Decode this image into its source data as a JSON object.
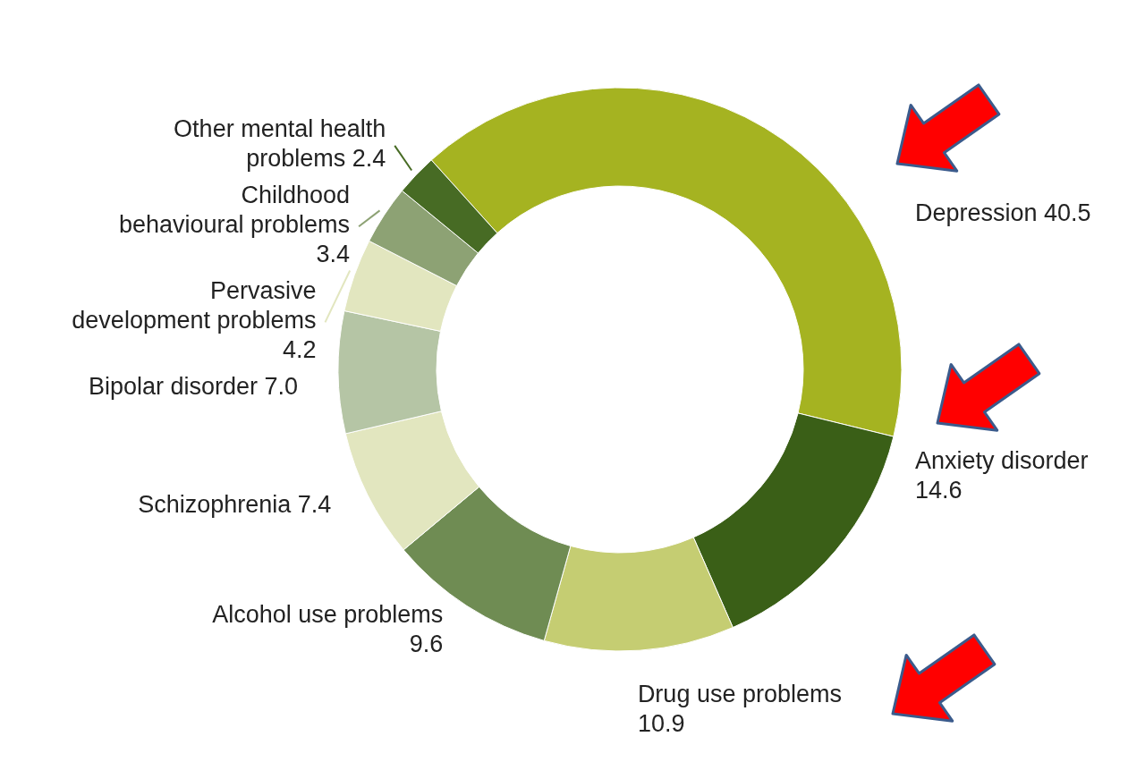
{
  "chart_data": {
    "type": "donut",
    "categories": [
      "Depression",
      "Anxiety disorder",
      "Drug use problems",
      "Alcohol use problems",
      "Schizophrenia",
      "Bipolar disorder",
      "Pervasive development problems",
      "Childhood behavioural problems",
      "Other mental health problems"
    ],
    "values": [
      40.5,
      14.6,
      10.9,
      9.6,
      7.4,
      7.0,
      4.2,
      3.4,
      2.4
    ],
    "value_labels": [
      "40.5",
      "14.6",
      "10.9",
      "9.6",
      "7.4",
      "7.0",
      "4.2",
      "3.4",
      "2.4"
    ],
    "colors": [
      "#a5b321",
      "#3a5f17",
      "#c5cd72",
      "#6f8c53",
      "#e2e6bf",
      "#b5c5a5",
      "#e2e6bf",
      "#8da274",
      "#476b24"
    ]
  }
}
